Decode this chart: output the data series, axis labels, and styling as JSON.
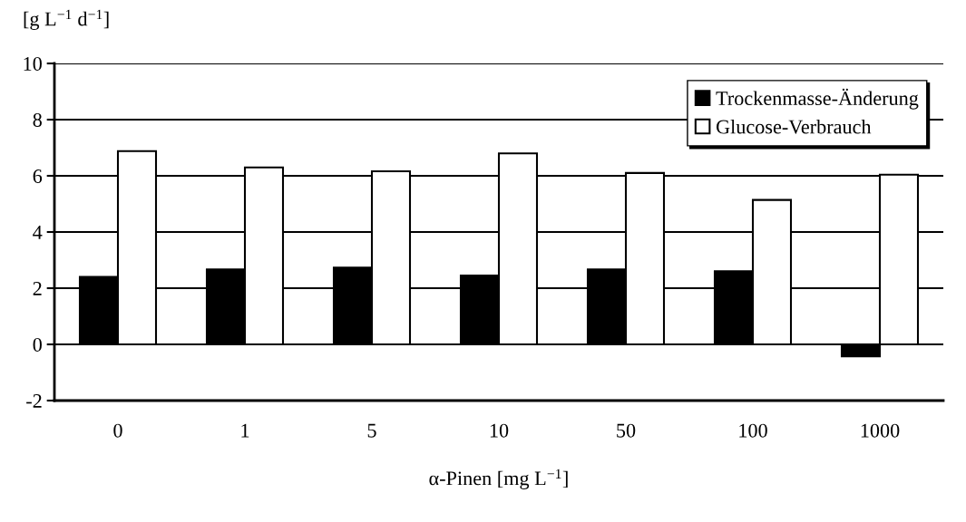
{
  "chart_data": {
    "type": "bar",
    "ylabel": "[g L$^{−1}$ d$^{−1}$]",
    "xlabel": "α-Pinen [mg L$^{−1}$]",
    "categories": [
      "0",
      "1",
      "5",
      "10",
      "50",
      "100",
      "1000"
    ],
    "series": [
      {
        "name": "Trockenmasse-Änderung",
        "color": "#000000",
        "values": [
          2.4,
          2.67,
          2.73,
          2.45,
          2.67,
          2.6,
          -0.43
        ]
      },
      {
        "name": "Glucose-Verbrauch",
        "color": "#ffffff",
        "values": [
          6.88,
          6.3,
          6.16,
          6.8,
          6.1,
          5.14,
          6.04
        ]
      }
    ],
    "ylim": [
      -2,
      10
    ],
    "yticks": [
      -2,
      0,
      2,
      4,
      6,
      8,
      10
    ],
    "grid": "y",
    "legend": "top right"
  }
}
